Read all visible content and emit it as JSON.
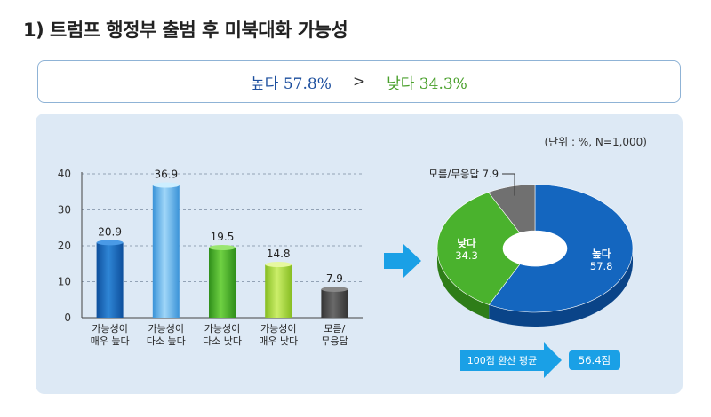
{
  "title": "1) 트럼프 행정부 출범 후 미북대화 가능성",
  "summary": {
    "high_label": "높다 57.8%",
    "gt": ">",
    "low_label": "낮다 34.3%"
  },
  "unit_note": "(단위 : %, N=1,000)",
  "colors": {
    "blue": "#1d6fc2",
    "light_blue": "#5eb4ee",
    "green": "#52b82e",
    "light_green": "#aee03c",
    "dark": "#555555",
    "gray": "#8a8a8a",
    "arrow": "#1aa0e6"
  },
  "chart_data": [
    {
      "type": "bar",
      "categories": [
        "가능성이\n매우 높다",
        "가능성이\n다소 높다",
        "가능성이\n다소 낮다",
        "가능성이\n매우 낮다",
        "모름/\n무응답"
      ],
      "values": [
        20.9,
        36.9,
        19.5,
        14.8,
        7.9
      ],
      "value_labels": [
        "20.9",
        "36.9",
        "19.5",
        "14.8",
        "7.9"
      ],
      "yticks": [
        "0",
        "10",
        "20",
        "30",
        "40"
      ],
      "ylim": [
        0,
        40
      ],
      "grid": true,
      "title": "",
      "xlabel": "",
      "ylabel": ""
    },
    {
      "type": "pie",
      "labels": [
        "높다",
        "낮다",
        "모름/무응답"
      ],
      "values": [
        57.8,
        34.3,
        7.9
      ],
      "value_labels": [
        "57.8",
        "34.3",
        "7.9"
      ],
      "outside_label": "모름/무응답 7.9",
      "donut": true
    }
  ],
  "average": {
    "label": "100점 환산 평균",
    "value": "56.4점"
  }
}
